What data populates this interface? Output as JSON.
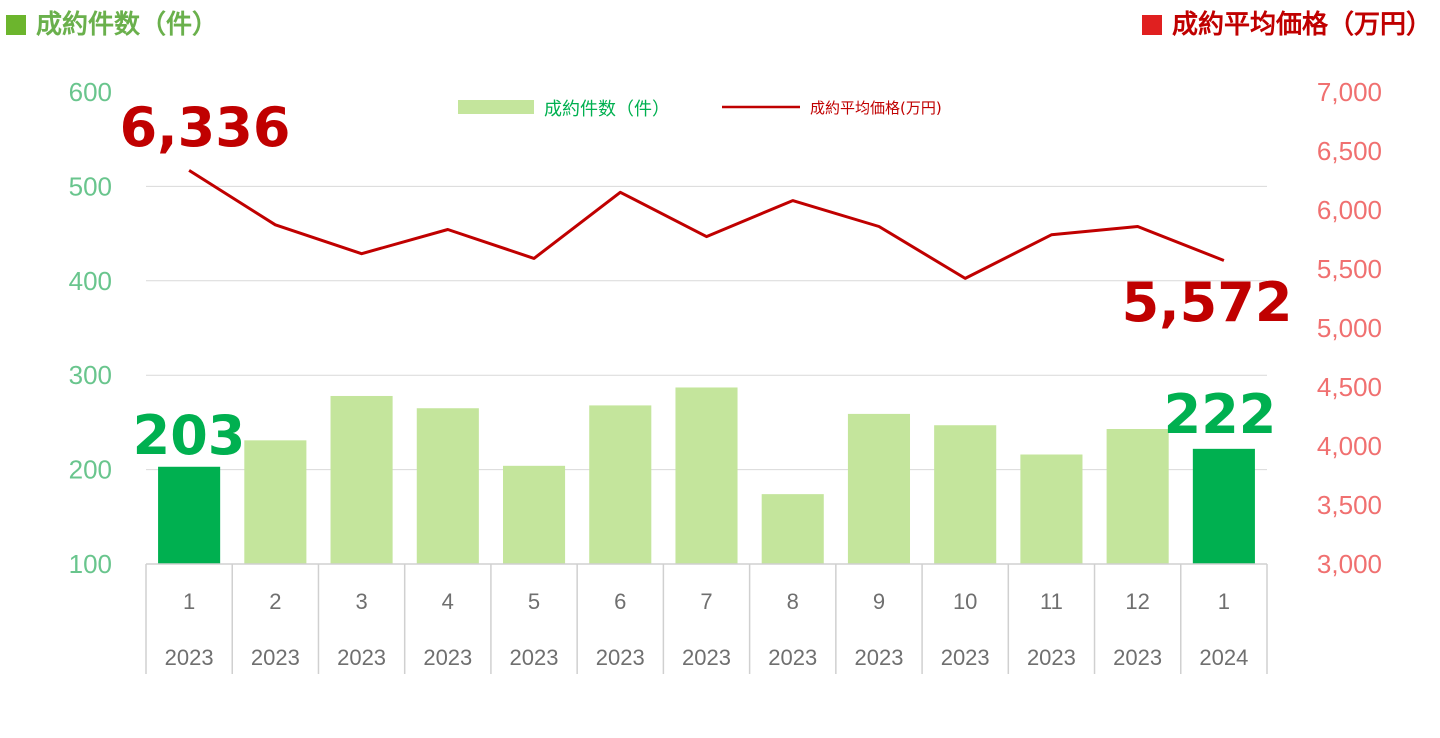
{
  "header": {
    "left_title": "成約件数（件）",
    "right_title": "成約平均価格（万円）"
  },
  "colors": {
    "bar_normal": "#c4e59c",
    "bar_highlight": "#00b050",
    "line": "#c00000",
    "left_axis_text": "#69c58d",
    "right_axis_text": "#f07070"
  },
  "chart_data": {
    "type": "bar+line",
    "categories": [
      "1",
      "2",
      "3",
      "4",
      "5",
      "6",
      "7",
      "8",
      "9",
      "10",
      "11",
      "12",
      "1"
    ],
    "years": [
      "2023",
      "2023",
      "2023",
      "2023",
      "2023",
      "2023",
      "2023",
      "2023",
      "2023",
      "2023",
      "2023",
      "2023",
      "2024"
    ],
    "series": [
      {
        "name": "成約件数（件）",
        "type": "bar",
        "axis": "left",
        "values": [
          203,
          231,
          278,
          265,
          204,
          268,
          287,
          174,
          259,
          247,
          216,
          243,
          222
        ],
        "highlight": [
          true,
          false,
          false,
          false,
          false,
          false,
          false,
          false,
          false,
          false,
          false,
          false,
          true
        ]
      },
      {
        "name": "成約平均価格(万円)",
        "type": "line",
        "axis": "right",
        "values": [
          6336,
          5875,
          5630,
          5835,
          5590,
          6150,
          5775,
          6080,
          5860,
          5420,
          5790,
          5860,
          5572
        ]
      }
    ],
    "left_axis": {
      "ylim": [
        100,
        600
      ],
      "ticks": [
        "100",
        "200",
        "300",
        "400",
        "500",
        "600"
      ]
    },
    "right_axis": {
      "ylim": [
        3000,
        7000
      ],
      "ticks": [
        "3,000",
        "3,500",
        "4,000",
        "4,500",
        "5,000",
        "5,500",
        "6,000",
        "6,500",
        "7,000"
      ]
    },
    "annotations": {
      "first_price": "6,336",
      "last_price": "5,572",
      "first_count": "203",
      "last_count": "222"
    },
    "legend_position": "top-center",
    "grid": true
  }
}
